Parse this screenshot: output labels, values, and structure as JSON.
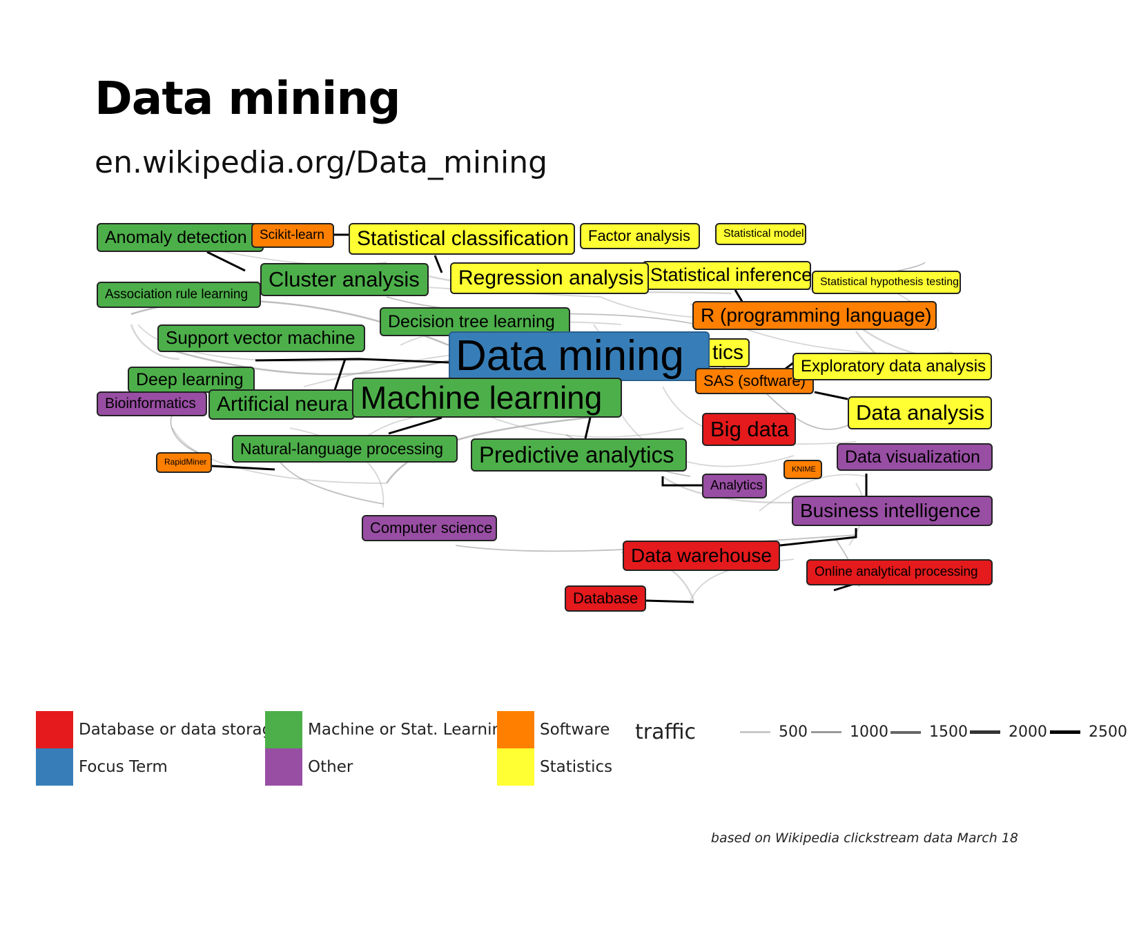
{
  "title": "Data mining",
  "subtitle": "en.wikipedia.org/Data_mining",
  "caption": "based on Wikipedia clickstream data March 18",
  "colors": {
    "database": "#e41a1c",
    "focus": "#377eb8",
    "ml": "#4daf4a",
    "other": "#984ea3",
    "software": "#ff7f00",
    "statistics": "#ffff33"
  },
  "legend": {
    "categories": [
      {
        "label": "Database or data storage",
        "color": "#e41a1c"
      },
      {
        "label": "Focus Term",
        "color": "#377eb8"
      },
      {
        "label": "Machine or Stat. Learning",
        "color": "#4daf4a"
      },
      {
        "label": "Other",
        "color": "#984ea3"
      },
      {
        "label": "Software",
        "color": "#ff7f00"
      },
      {
        "label": "Statistics",
        "color": "#ffff33"
      }
    ],
    "traffic_title": "traffic",
    "traffic_levels": [
      {
        "label": "500",
        "value": 500
      },
      {
        "label": "1000",
        "value": 1000
      },
      {
        "label": "1500",
        "value": 1500
      },
      {
        "label": "2000",
        "value": 2000
      },
      {
        "label": "2500",
        "value": 2500
      }
    ]
  },
  "nodes": [
    {
      "id": "anomaly",
      "label": "Anomaly detection",
      "category": "ml"
    },
    {
      "id": "scikit",
      "label": "Scikit-learn",
      "category": "software"
    },
    {
      "id": "statclass",
      "label": "Statistical classification",
      "category": "statistics"
    },
    {
      "id": "factor",
      "label": "Factor analysis",
      "category": "statistics"
    },
    {
      "id": "statmodel",
      "label": "Statistical model",
      "category": "statistics"
    },
    {
      "id": "cluster",
      "label": "Cluster analysis",
      "category": "ml"
    },
    {
      "id": "regression",
      "label": "Regression analysis",
      "category": "statistics"
    },
    {
      "id": "statinf",
      "label": "Statistical inference",
      "category": "statistics"
    },
    {
      "id": "hypothesis",
      "label": "Statistical hypothesis testing",
      "category": "statistics"
    },
    {
      "id": "assocrule",
      "label": "Association rule learning",
      "category": "ml"
    },
    {
      "id": "r",
      "label": "R (programming language)",
      "category": "software"
    },
    {
      "id": "dtree",
      "label": "Decision tree learning",
      "category": "ml"
    },
    {
      "id": "svm",
      "label": "Support vector machine",
      "category": "ml"
    },
    {
      "id": "statistics",
      "label": "Statistics",
      "category": "statistics"
    },
    {
      "id": "datamining",
      "label": "Data mining",
      "category": "focus"
    },
    {
      "id": "eda",
      "label": "Exploratory data analysis",
      "category": "statistics"
    },
    {
      "id": "deeplearning",
      "label": "Deep learning",
      "category": "ml"
    },
    {
      "id": "sas",
      "label": "SAS (software)",
      "category": "software"
    },
    {
      "id": "bioinf",
      "label": "Bioinformatics",
      "category": "other"
    },
    {
      "id": "ann",
      "label": "Artificial neural network",
      "category": "ml"
    },
    {
      "id": "ml",
      "label": "Machine learning",
      "category": "ml"
    },
    {
      "id": "dataanalysis",
      "label": "Data analysis",
      "category": "statistics"
    },
    {
      "id": "bigdata",
      "label": "Big data",
      "category": "database"
    },
    {
      "id": "nlp",
      "label": "Natural-language processing",
      "category": "ml"
    },
    {
      "id": "predictive",
      "label": "Predictive analytics",
      "category": "ml"
    },
    {
      "id": "datavis",
      "label": "Data visualization",
      "category": "other"
    },
    {
      "id": "rapidminer",
      "label": "RapidMiner",
      "category": "software"
    },
    {
      "id": "knime",
      "label": "KNIME",
      "category": "software"
    },
    {
      "id": "analytics",
      "label": "Analytics",
      "category": "other"
    },
    {
      "id": "bi",
      "label": "Business intelligence",
      "category": "other"
    },
    {
      "id": "cs",
      "label": "Computer science",
      "category": "other"
    },
    {
      "id": "dw",
      "label": "Data warehouse",
      "category": "database"
    },
    {
      "id": "olap",
      "label": "Online analytical processing",
      "category": "database"
    },
    {
      "id": "database",
      "label": "Database",
      "category": "database"
    }
  ]
}
